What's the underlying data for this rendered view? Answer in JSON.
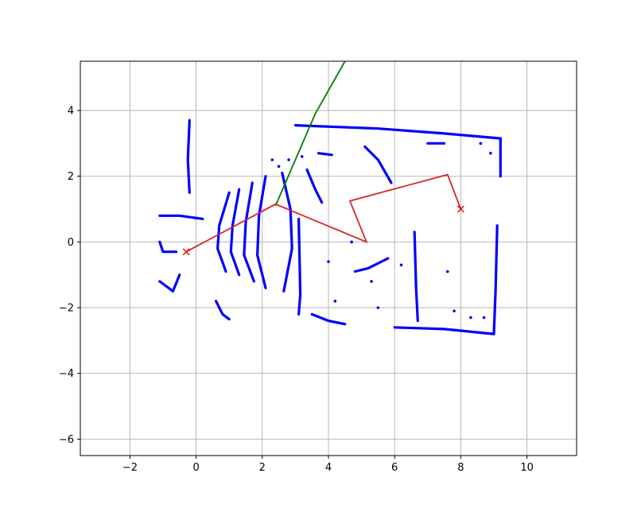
{
  "chart_data": {
    "type": "scatter",
    "title": "",
    "xlabel": "",
    "ylabel": "",
    "xlim": [
      -3.5,
      11.5
    ],
    "ylim": [
      -6.5,
      5.5
    ],
    "grid": true,
    "x_ticks": [
      -2,
      0,
      2,
      4,
      6,
      8,
      10
    ],
    "y_ticks": [
      -6,
      -4,
      -2,
      0,
      2,
      4
    ],
    "x_tick_labels": [
      "−2",
      "0",
      "2",
      "4",
      "6",
      "8",
      "10"
    ],
    "y_tick_labels": [
      "−6",
      "−4",
      "−2",
      "0",
      "2",
      "4"
    ],
    "colors": {
      "points": "#0000ff",
      "path": "#d62728",
      "trajectory": "#008000",
      "grid": "#b0b0b0"
    },
    "series": [
      {
        "kind": "lines",
        "color": "#0000ff",
        "marker": "dots",
        "segments": [
          [
            [
              3.0,
              3.55
            ],
            [
              5.5,
              3.45
            ],
            [
              7.5,
              3.3
            ],
            [
              9.2,
              3.15
            ]
          ],
          [
            [
              9.2,
              3.15
            ],
            [
              9.2,
              2.0
            ]
          ],
          [
            [
              9.1,
              0.5
            ],
            [
              9.05,
              -1.5
            ],
            [
              9.0,
              -2.8
            ]
          ],
          [
            [
              6.0,
              -2.6
            ],
            [
              7.5,
              -2.65
            ],
            [
              9.0,
              -2.8
            ]
          ],
          [
            [
              -0.2,
              3.7
            ],
            [
              -0.25,
              2.5
            ],
            [
              -0.2,
              1.5
            ]
          ],
          [
            [
              -1.1,
              0.8
            ],
            [
              -0.5,
              0.8
            ],
            [
              0.2,
              0.7
            ]
          ],
          [
            [
              -1.1,
              0.0
            ],
            [
              -1.0,
              -0.3
            ],
            [
              -0.6,
              -0.3
            ]
          ],
          [
            [
              -1.1,
              -1.2
            ],
            [
              -0.7,
              -1.5
            ],
            [
              -0.5,
              -1.0
            ]
          ],
          [
            [
              0.6,
              -1.8
            ],
            [
              0.8,
              -2.2
            ],
            [
              1.0,
              -2.35
            ]
          ],
          [
            [
              1.0,
              1.5
            ],
            [
              0.7,
              0.5
            ],
            [
              0.65,
              -0.2
            ],
            [
              0.9,
              -0.9
            ]
          ],
          [
            [
              1.3,
              1.6
            ],
            [
              1.1,
              0.5
            ],
            [
              1.05,
              -0.3
            ],
            [
              1.3,
              -1.0
            ]
          ],
          [
            [
              1.7,
              1.8
            ],
            [
              1.5,
              0.6
            ],
            [
              1.45,
              -0.4
            ],
            [
              1.75,
              -1.2
            ]
          ],
          [
            [
              2.1,
              2.0
            ],
            [
              1.9,
              0.8
            ],
            [
              1.85,
              -0.4
            ],
            [
              2.1,
              -1.4
            ]
          ],
          [
            [
              2.6,
              2.1
            ],
            [
              2.85,
              1.0
            ],
            [
              2.9,
              -0.2
            ],
            [
              2.65,
              -1.5
            ]
          ],
          [
            [
              3.35,
              2.2
            ],
            [
              3.6,
              1.6
            ],
            [
              3.8,
              1.2
            ]
          ],
          [
            [
              5.1,
              2.9
            ],
            [
              5.5,
              2.5
            ],
            [
              5.9,
              1.8
            ]
          ],
          [
            [
              3.1,
              0.7
            ],
            [
              3.15,
              -1.6
            ],
            [
              3.1,
              -2.2
            ]
          ],
          [
            [
              3.5,
              -2.2
            ],
            [
              4.0,
              -2.4
            ],
            [
              4.5,
              -2.5
            ]
          ],
          [
            [
              4.8,
              -0.9
            ],
            [
              5.2,
              -0.8
            ],
            [
              5.8,
              -0.5
            ]
          ],
          [
            [
              6.6,
              0.3
            ],
            [
              6.65,
              -1.4
            ],
            [
              6.7,
              -2.4
            ]
          ],
          [
            [
              3.7,
              2.7
            ],
            [
              4.1,
              2.65
            ]
          ],
          [
            [
              7.0,
              3.0
            ],
            [
              7.5,
              3.0
            ]
          ]
        ],
        "points": [
          [
            2.3,
            2.5
          ],
          [
            2.5,
            2.3
          ],
          [
            2.8,
            2.5
          ],
          [
            3.2,
            2.6
          ],
          [
            4.7,
            0.0
          ],
          [
            5.3,
            -1.2
          ],
          [
            5.5,
            -2.0
          ],
          [
            6.2,
            -0.7
          ],
          [
            7.6,
            -0.9
          ],
          [
            7.8,
            -2.1
          ],
          [
            8.3,
            -2.3
          ],
          [
            8.7,
            -2.3
          ],
          [
            4.2,
            -1.8
          ],
          [
            4.0,
            -0.6
          ],
          [
            8.6,
            3.0
          ],
          [
            8.9,
            2.7
          ]
        ]
      },
      {
        "kind": "polyline",
        "color": "#008000",
        "points": [
          [
            2.4,
            1.1
          ],
          [
            3.6,
            3.9
          ],
          [
            4.5,
            5.5
          ]
        ]
      },
      {
        "kind": "polyline",
        "color": "#d62728",
        "points": [
          [
            -0.3,
            -0.3
          ],
          [
            2.4,
            1.15
          ],
          [
            5.15,
            0.0
          ],
          [
            4.65,
            1.25
          ],
          [
            7.6,
            2.05
          ],
          [
            8.0,
            1.0
          ]
        ]
      },
      {
        "kind": "markers",
        "marker": "x",
        "color": "#ff0000",
        "points": [
          [
            -0.3,
            -0.3
          ],
          [
            8.0,
            1.0
          ]
        ]
      }
    ]
  }
}
